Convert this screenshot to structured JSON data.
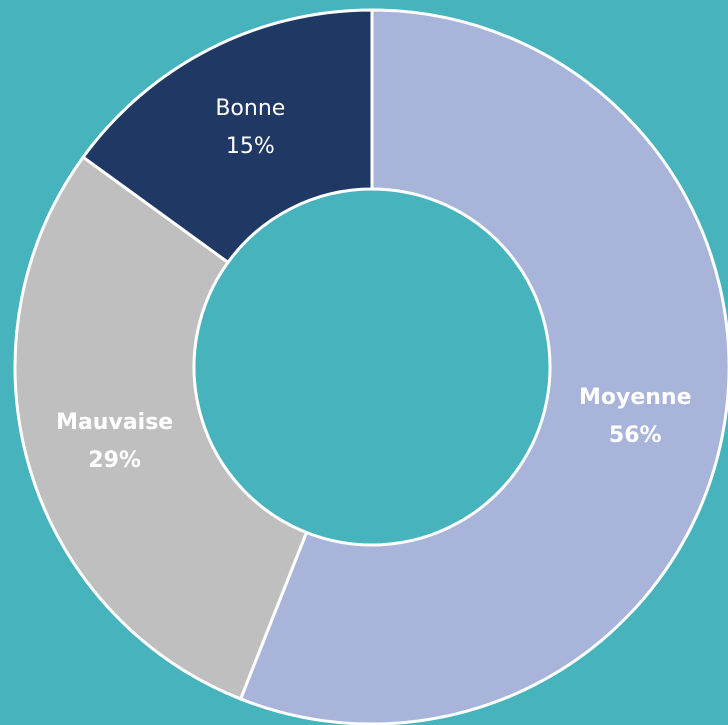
{
  "chart_data": {
    "type": "donut",
    "categories": [
      "Moyenne",
      "Mauvaise",
      "Bonne"
    ],
    "values": [
      56,
      29,
      15
    ],
    "value_labels": [
      "56%",
      "29%",
      "15%"
    ],
    "colors": [
      "#a9b4da",
      "#bfbfbf",
      "#203864"
    ]
  }
}
